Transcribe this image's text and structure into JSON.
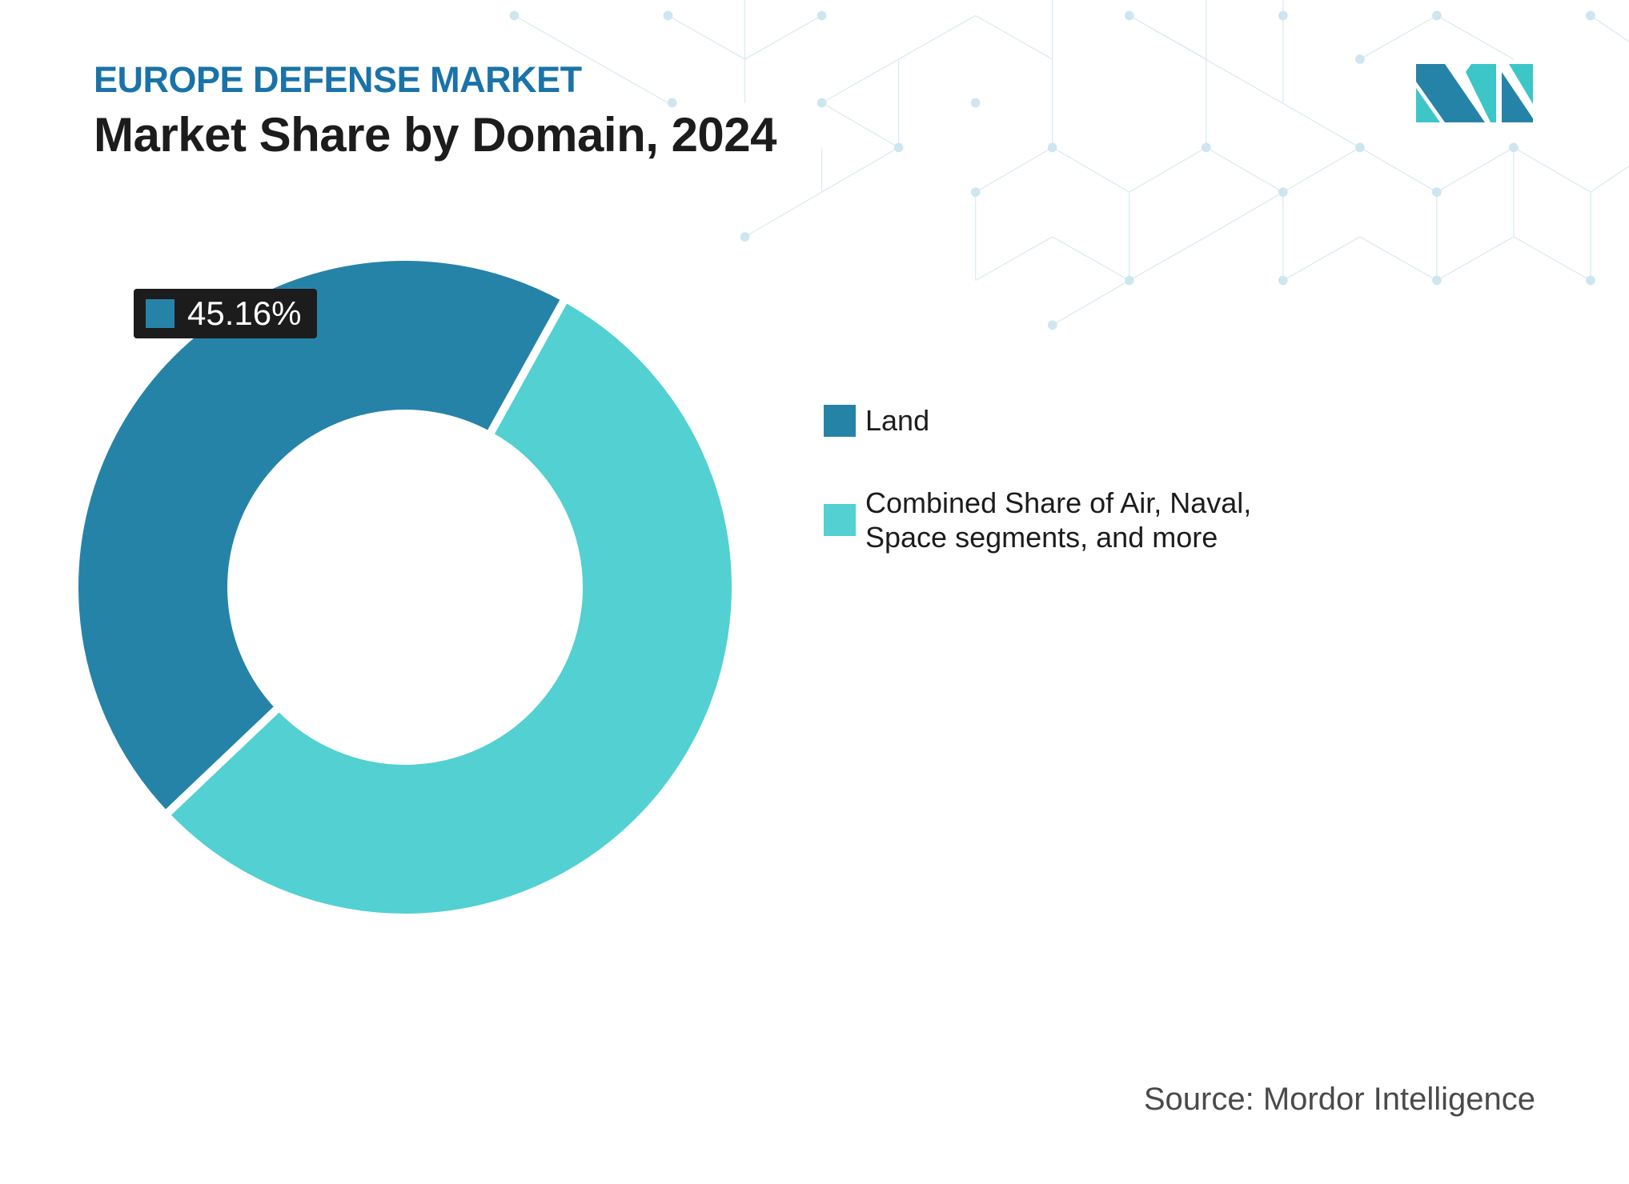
{
  "header": {
    "eyebrow": "EUROPE DEFENSE MARKET",
    "title": "Market Share by Domain, 2024"
  },
  "logo": {
    "name": "mordor-intelligence-logo",
    "colors": [
      "#2683a8",
      "#3cc6c8"
    ]
  },
  "chart_data": {
    "type": "pie",
    "variant": "donut",
    "title": "Market Share by Domain, 2024",
    "series": [
      {
        "name": "Land",
        "value": 45.16,
        "color": "#2683a8"
      },
      {
        "name": "Combined Share of Air, Naval, Space segments, and more",
        "value": 54.84,
        "color": "#52d0d2"
      }
    ],
    "data_labels": [
      {
        "series": "Land",
        "text": "45.16%"
      }
    ],
    "legend_placement": "right",
    "units": "%"
  },
  "legend": {
    "items": [
      {
        "label": "Land",
        "color": "#2683a8"
      },
      {
        "label": "Combined Share of Air, Naval, Space segments, and more",
        "color": "#52d0d2"
      }
    ]
  },
  "footer": {
    "source": "Source: Mordor Intelligence"
  }
}
